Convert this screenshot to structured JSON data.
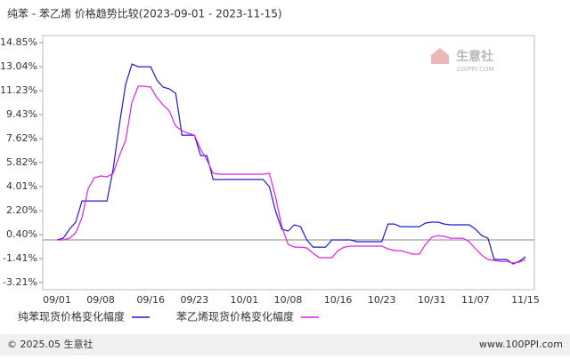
{
  "chart_data": {
    "type": "line",
    "title": "纯苯 - 苯乙烯 价格趋势比较(2023-09-01 - 2023-11-15)",
    "watermark": {
      "name": "生意社",
      "site": "100PPI.COM"
    },
    "footer": {
      "left": "© 2025.05 生意社",
      "right": "www.100PPI.com"
    },
    "categories": [
      "09/01",
      null,
      null,
      null,
      null,
      null,
      null,
      "09/08",
      null,
      null,
      null,
      null,
      null,
      null,
      null,
      "09/16",
      null,
      null,
      null,
      null,
      null,
      null,
      "09/23",
      null,
      null,
      null,
      null,
      null,
      null,
      null,
      "10/01",
      null,
      null,
      null,
      null,
      null,
      null,
      "10/08",
      null,
      null,
      null,
      null,
      null,
      null,
      null,
      "10/16",
      null,
      null,
      null,
      null,
      null,
      null,
      "10/23",
      null,
      null,
      null,
      null,
      null,
      null,
      null,
      "10/31",
      null,
      null,
      null,
      null,
      null,
      null,
      "11/07",
      null,
      null,
      null,
      null,
      null,
      null,
      null,
      "11/15"
    ],
    "series": [
      {
        "name": "纯苯现货价格变化幅度",
        "color": "#1c1ccc",
        "values": [
          0,
          0.13,
          0.8,
          1.34,
          2.94,
          2.94,
          2.94,
          2.94,
          2.94,
          5.35,
          8.7,
          11.71,
          13.24,
          13.04,
          13.04,
          13.04,
          12.04,
          11.5,
          11.37,
          11.04,
          7.89,
          7.89,
          7.89,
          6.35,
          6.35,
          4.55,
          4.55,
          4.55,
          4.55,
          4.55,
          4.55,
          4.55,
          4.55,
          4.55,
          4.01,
          2.14,
          0.8,
          0.67,
          1.14,
          1.0,
          0,
          -0.54,
          -0.54,
          -0.54,
          0,
          0,
          0,
          0,
          -0.13,
          -0.13,
          -0.13,
          -0.13,
          -0.13,
          1.2,
          1.2,
          1.0,
          1.0,
          1.0,
          1.0,
          1.27,
          1.34,
          1.34,
          1.2,
          1.14,
          1.14,
          1.14,
          1.14,
          0.8,
          0.33,
          0.13,
          -1.47,
          -1.47,
          -1.47,
          -1.81,
          -1.61,
          -1.27
        ]
      },
      {
        "name": "苯乙烯现货价格变化幅度",
        "color": "#e020e0",
        "values": [
          0,
          0,
          0.13,
          0.53,
          1.67,
          3.88,
          4.68,
          4.82,
          4.75,
          5.02,
          6.35,
          7.49,
          10.37,
          11.57,
          11.57,
          11.5,
          10.7,
          10.17,
          9.7,
          8.56,
          8.23,
          8.03,
          7.89,
          6.82,
          6.02,
          5.02,
          4.95,
          4.95,
          4.95,
          4.95,
          4.95,
          4.95,
          4.95,
          4.95,
          5.02,
          3.21,
          1.0,
          -0.34,
          -0.54,
          -0.54,
          -0.6,
          -1.0,
          -1.34,
          -1.34,
          -1.34,
          -0.8,
          -0.54,
          -0.47,
          -0.47,
          -0.47,
          -0.47,
          -0.47,
          -0.47,
          -0.67,
          -0.8,
          -0.8,
          -0.94,
          -1.07,
          -1.07,
          -0.34,
          0.2,
          0.33,
          0.27,
          0.13,
          0.13,
          0.13,
          -0.13,
          -0.67,
          -1.14,
          -1.47,
          -1.54,
          -1.61,
          -1.61,
          -1.74,
          -1.67,
          -1.47
        ]
      }
    ],
    "ylim": [
      -3.21,
      14.85
    ],
    "yticks": [
      {
        "value": 14.85,
        "label": "14.85%"
      },
      {
        "value": 13.04,
        "label": "13.04%"
      },
      {
        "value": 11.23,
        "label": "11.23%"
      },
      {
        "value": 9.43,
        "label": "9.43%"
      },
      {
        "value": 7.62,
        "label": "7.62%"
      },
      {
        "value": 5.82,
        "label": "5.82%"
      },
      {
        "value": 4.01,
        "label": "4.01%"
      },
      {
        "value": 2.2,
        "label": "2.20%"
      },
      {
        "value": 0.4,
        "label": "0.40%"
      },
      {
        "value": -1.41,
        "label": "-1.41%"
      },
      {
        "value": -3.21,
        "label": "-3.21%"
      }
    ],
    "grid": false,
    "legend": "bottom"
  }
}
